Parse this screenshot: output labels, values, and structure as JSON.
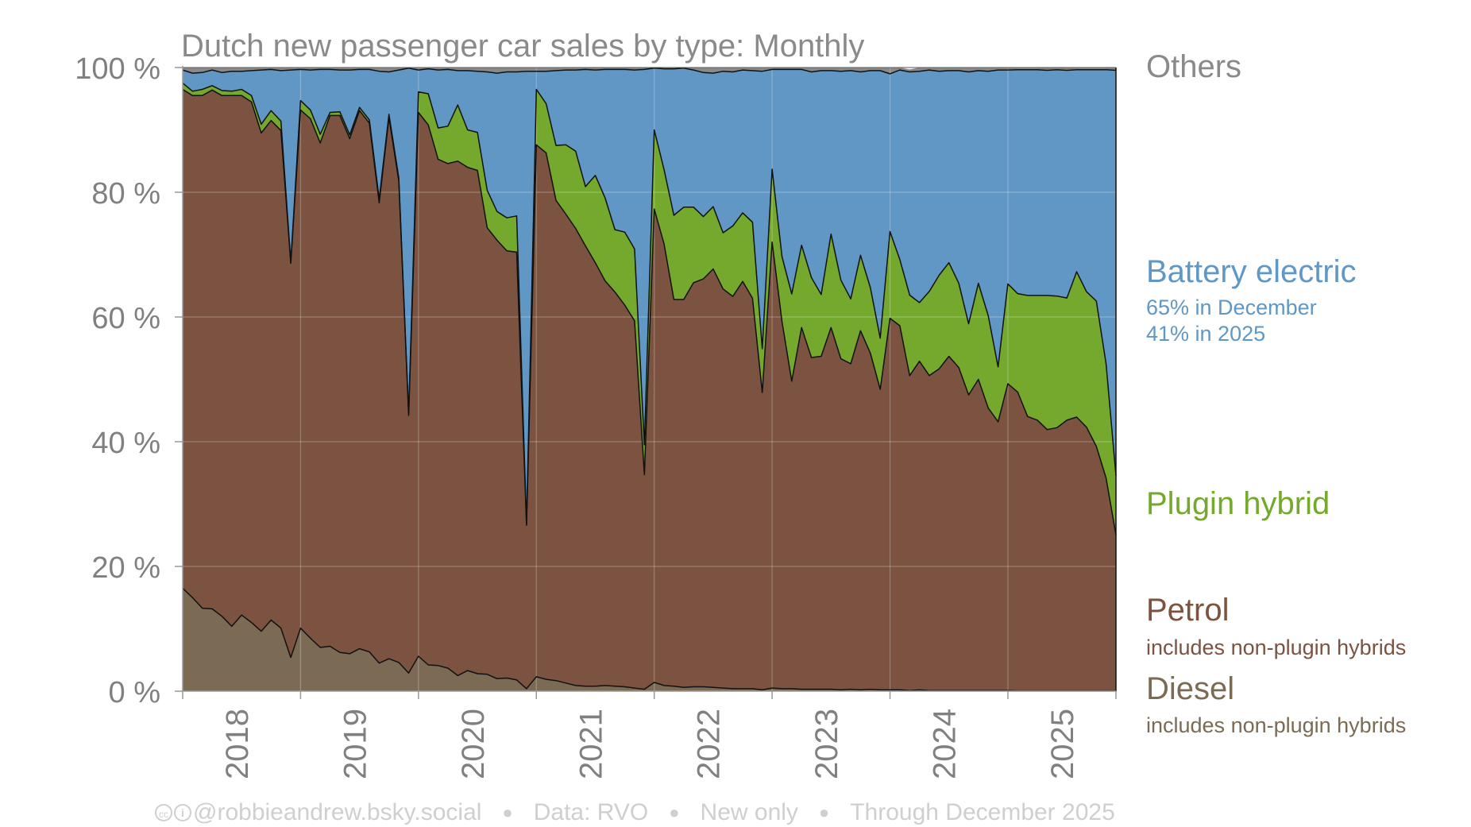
{
  "title": "Dutch new passenger car sales by type: Monthly",
  "footer": {
    "credit": "@robbieandrew.bsky.social",
    "data_source": "Data: RVO",
    "scope": "New only",
    "coverage": "Through December 2025"
  },
  "labels": {
    "others": "Others",
    "bev": "Battery electric",
    "bev_note_1": "65% in December",
    "bev_note_2": "41% in 2025",
    "phev": "Plugin hybrid",
    "petrol": "Petrol",
    "petrol_note": "includes non-plugin hybrids",
    "diesel": "Diesel",
    "diesel_note": "includes non-plugin hybrids"
  },
  "colors": {
    "diesel": "#7b6b55",
    "petrol": "#7b5340",
    "phev": "#74a92e",
    "bev": "#6097c5",
    "others": "#8a8a8a",
    "axis_text": "#808080"
  },
  "chart_data": {
    "type": "area",
    "stacked": true,
    "title": "Dutch new passenger car sales by type: Monthly",
    "x_start": "2018-01",
    "x_end": "2025-12",
    "xtick_labels": [
      "2018",
      "2019",
      "2020",
      "2021",
      "2022",
      "2023",
      "2024",
      "2025"
    ],
    "ytick_labels": [
      "0 %",
      "20 %",
      "40 %",
      "60 %",
      "80 %",
      "100 %"
    ],
    "ylim": [
      0,
      100
    ],
    "grid": true,
    "series": [
      {
        "name": "Diesel",
        "key": "diesel",
        "values": [
          16.5,
          15,
          13.3,
          13.2,
          12,
          10.4,
          12.2,
          11,
          9.6,
          11.4,
          10.1,
          5.4,
          10.1,
          8.5,
          7,
          7.2,
          6.2,
          6,
          6.8,
          6.3,
          4.5,
          5.2,
          4.6,
          2.9,
          5.6,
          4.2,
          4.1,
          3.7,
          2.5,
          3.3,
          2.8,
          2.7,
          2,
          2.1,
          1.8,
          0.4,
          2.3,
          1.9,
          1.7,
          1.3,
          0.9,
          0.8,
          0.8,
          0.9,
          0.8,
          0.7,
          0.5,
          0.3,
          1.4,
          0.9,
          0.8,
          0.6,
          0.7,
          0.7,
          0.6,
          0.5,
          0.4,
          0.4,
          0.4,
          0.2,
          0.5,
          0.4,
          0.4,
          0.3,
          0.3,
          0.3,
          0.3,
          0.2,
          0.3,
          0.2,
          0.3,
          0.2,
          0.2,
          0.2,
          0.1,
          0.2,
          0.1,
          0.1,
          0.1,
          0.1,
          0.1,
          0.1,
          0.1,
          0.1,
          0.1,
          0.05,
          0.05,
          0.05,
          0.05,
          0.05,
          0.05,
          0.05,
          0.05,
          0.05,
          0.05,
          0.05
        ]
      },
      {
        "name": "Petrol",
        "key": "petrol",
        "values": [
          80,
          80.5,
          82.2,
          83.2,
          83.5,
          85.1,
          83.3,
          83.5,
          79.9,
          80.1,
          79.8,
          63.2,
          83.1,
          83.3,
          80.9,
          85.1,
          86.1,
          82.6,
          86.3,
          84.8,
          73.8,
          86.8,
          77.2,
          41.3,
          87.2,
          86.6,
          81.2,
          80.9,
          82.5,
          80.7,
          80.7,
          71.6,
          70.3,
          68.5,
          68.6,
          26.2,
          85.3,
          84.4,
          77,
          75.2,
          73.3,
          70.6,
          67.9,
          64.9,
          63.2,
          61.2,
          58.9,
          34.4,
          75.9,
          70.8,
          62,
          62.2,
          64.8,
          65.4,
          67.1,
          64,
          62.9,
          65.3,
          62.6,
          47.7,
          71.5,
          58.9,
          49.3,
          58,
          53.2,
          53.4,
          58,
          53.1,
          52.2,
          57.6,
          53.9,
          48.2,
          59.6,
          58.4,
          50.5,
          52.7,
          50.5,
          51.6,
          53.6,
          51.8,
          47.4,
          49.9,
          45.3,
          43.1,
          49.2,
          47.9,
          44,
          43.4,
          41.9,
          42.2,
          43.4,
          43.9,
          42.3,
          39.2,
          34.1,
          25
        ]
      },
      {
        "name": "Plugin hybrid",
        "key": "phev",
        "values": [
          1,
          0.7,
          1,
          0.7,
          0.8,
          0.7,
          1,
          1,
          1.4,
          1.6,
          1.5,
          0.2,
          1.5,
          1.4,
          1.4,
          0.5,
          0.6,
          0.6,
          0.5,
          0.5,
          0.6,
          0.5,
          0.5,
          0.3,
          3.3,
          5,
          5,
          6,
          9,
          6,
          6.1,
          6,
          4.6,
          5.3,
          5.8,
          0.2,
          8.9,
          7.9,
          8.8,
          11.1,
          12.4,
          9.5,
          14,
          13.3,
          10,
          11.7,
          11.5,
          4.8,
          12.7,
          11.9,
          13.5,
          14.8,
          12.1,
          10,
          10,
          9,
          11.3,
          11,
          12.2,
          7,
          11.7,
          10.4,
          14,
          13.2,
          12.8,
          9.9,
          15,
          12.6,
          10.4,
          12.1,
          10.5,
          8.2,
          13.9,
          10.6,
          12.9,
          9.4,
          13.5,
          15,
          15,
          13.5,
          11.4,
          15.4,
          14.8,
          8.8,
          16,
          15.8,
          19.4,
          20,
          21.5,
          21.1,
          19.6,
          23.3,
          21.7,
          23.3,
          18.3,
          9.5
        ]
      },
      {
        "name": "Battery electric",
        "key": "bev",
        "values": [
          2.1,
          2.9,
          2.7,
          2.5,
          2.9,
          3.2,
          2.9,
          4,
          8.7,
          6.6,
          8.1,
          30.8,
          5,
          6.4,
          10.4,
          6.9,
          6.7,
          10.4,
          6.1,
          8.1,
          20.5,
          6.8,
          17.3,
          55.4,
          3.5,
          4,
          9.3,
          9.1,
          5.5,
          9.5,
          9.8,
          19,
          22.2,
          23.4,
          23.1,
          72.6,
          2.9,
          5.2,
          12,
          12,
          13,
          18.8,
          16.9,
          20.6,
          25.7,
          26.1,
          28.7,
          60.2,
          9.9,
          16.2,
          23.5,
          22.3,
          22,
          23.1,
          21.4,
          25.9,
          24.7,
          22.9,
          24.3,
          44.5,
          16,
          30,
          36,
          28.2,
          33,
          35.9,
          26.2,
          33.5,
          36.6,
          29.4,
          34.8,
          42.9,
          25.3,
          30.4,
          35.8,
          37.1,
          35.5,
          32.7,
          30.8,
          34.1,
          40.4,
          34.1,
          39.2,
          47.6,
          34.3,
          35.9,
          36.2,
          36.2,
          36.1,
          36.3,
          36.5,
          32.4,
          35.6,
          37.1,
          47.2,
          65
        ]
      },
      {
        "name": "Others",
        "key": "others",
        "values": [
          0.4,
          0.9,
          0.8,
          0.4,
          0.8,
          0.6,
          0.6,
          0.5,
          0.4,
          0.3,
          0.5,
          0.4,
          0.3,
          0.4,
          0.3,
          0.3,
          0.4,
          0.4,
          0.3,
          0.3,
          0.6,
          0.7,
          0.4,
          0.1,
          0.4,
          0.2,
          0.4,
          0.3,
          0.5,
          0.5,
          0.6,
          0.7,
          0.9,
          0.7,
          0.7,
          0.6,
          0.6,
          0.6,
          0.5,
          0.4,
          0.4,
          0.3,
          0.4,
          0.3,
          0.3,
          0.3,
          0.4,
          0.3,
          0.1,
          0.2,
          0.2,
          0.1,
          0.4,
          0.8,
          0.9,
          0.6,
          0.7,
          0.4,
          0.5,
          0.6,
          0.3,
          0.3,
          0.3,
          0.3,
          0.7,
          0.5,
          0.5,
          0.6,
          0.5,
          0.7,
          0.5,
          0.5,
          1,
          0.6,
          0.4,
          0.6,
          0.4,
          0.6,
          0.5,
          0.5,
          0.7,
          0.5,
          0.6,
          0.4,
          0.5,
          0.3,
          0.4,
          0.4,
          0.5,
          0.4,
          0.5,
          0.4,
          0.4,
          0.4,
          0.4,
          0.5
        ]
      }
    ]
  }
}
